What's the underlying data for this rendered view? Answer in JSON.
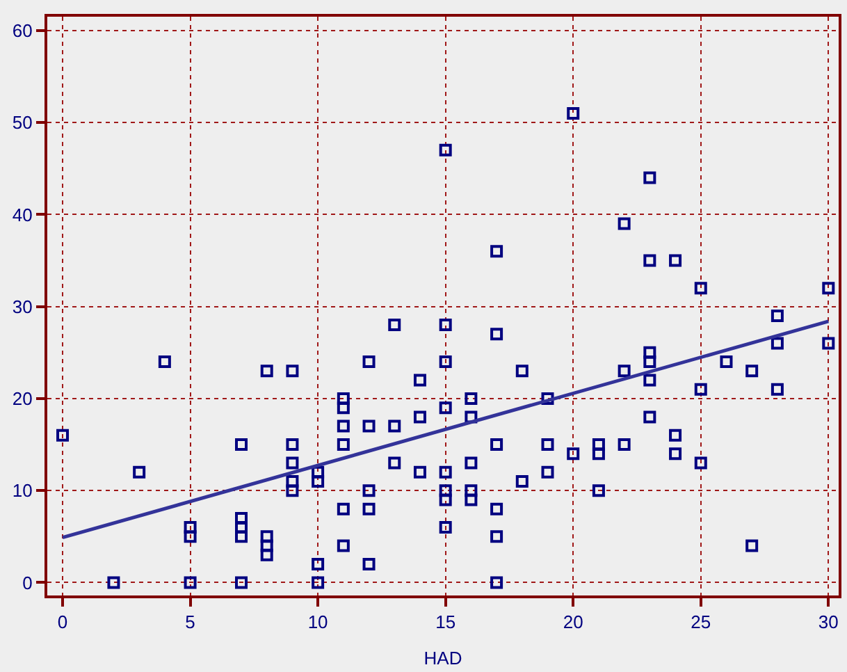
{
  "chart_data": {
    "type": "scatter",
    "xlabel": "HAD",
    "xlim": [
      -0.6,
      30.4
    ],
    "ylim": [
      -1.4,
      61.5
    ],
    "xticks": [
      0,
      5,
      10,
      15,
      20,
      25,
      30
    ],
    "yticks": [
      0,
      10,
      20,
      30,
      40,
      50,
      60
    ],
    "grid": true,
    "legend": false,
    "series": [
      {
        "color": "#000080",
        "marker": "square",
        "x": [
          0,
          2,
          3,
          4,
          5,
          5,
          5,
          7,
          7,
          7,
          7,
          7,
          8,
          8,
          8,
          8,
          9,
          9,
          9,
          9,
          9,
          10,
          10,
          10,
          10,
          11,
          11,
          11,
          11,
          11,
          11,
          12,
          12,
          12,
          12,
          12,
          13,
          13,
          13,
          14,
          14,
          14,
          15,
          15,
          15,
          15,
          15,
          15,
          15,
          15,
          16,
          16,
          16,
          16,
          16,
          17,
          17,
          17,
          17,
          17,
          17,
          18,
          18,
          19,
          19,
          19,
          20,
          20,
          21,
          21,
          21,
          22,
          22,
          22,
          23,
          23,
          23,
          23,
          23,
          23,
          24,
          24,
          24,
          25,
          25,
          25,
          26,
          27,
          27,
          28,
          28,
          28,
          30,
          30
        ],
        "values": [
          16,
          0,
          12,
          24,
          6,
          5,
          0,
          15,
          7,
          6,
          5,
          0,
          23,
          5,
          4,
          3,
          23,
          15,
          13,
          11,
          10,
          12,
          11,
          2,
          0,
          20,
          19,
          17,
          15,
          8,
          4,
          24,
          17,
          10,
          8,
          2,
          28,
          17,
          13,
          22,
          18,
          12,
          47,
          28,
          24,
          19,
          12,
          10,
          9,
          6,
          20,
          18,
          13,
          10,
          9,
          36,
          27,
          15,
          8,
          5,
          0,
          23,
          11,
          20,
          15,
          12,
          51,
          14,
          15,
          14,
          10,
          39,
          23,
          15,
          44,
          35,
          25,
          24,
          22,
          18,
          35,
          16,
          14,
          32,
          21,
          13,
          24,
          23,
          4,
          29,
          26,
          21,
          32,
          26
        ]
      },
      {
        "type": "line",
        "marker": "none",
        "color": "#333399",
        "x": [
          0,
          30
        ],
        "values": [
          4.9,
          28.4
        ]
      }
    ]
  }
}
